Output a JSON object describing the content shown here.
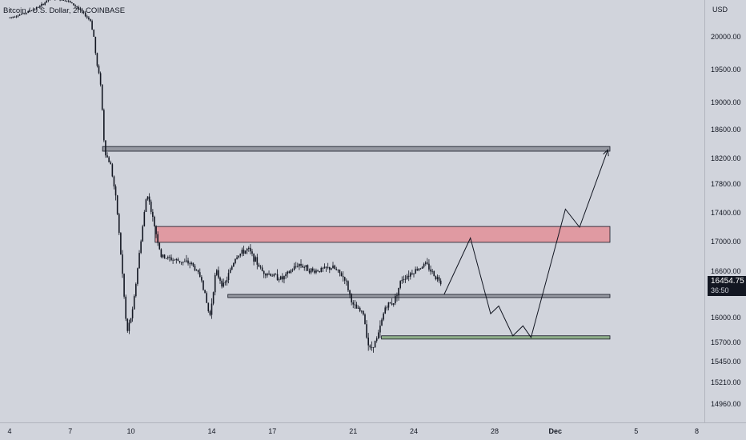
{
  "chart_data": {
    "type": "candlestick",
    "title": "Bitcoin / U.S. Dollar, 2h, COINBASE",
    "currency_label": "USD",
    "x_tick_labels": [
      "4",
      "7",
      "10",
      "14",
      "17",
      "21",
      "24",
      "28",
      "Dec",
      "5",
      "8"
    ],
    "y_tick_labels": [
      "20000.00",
      "19500.00",
      "19000.00",
      "18600.00",
      "18200.00",
      "17800.00",
      "17400.00",
      "17000.00",
      "16600.00",
      "16000.00",
      "15700.00",
      "15450.00",
      "15210.00",
      "14960.00"
    ],
    "last_price": "16454.75",
    "countdown": "36:50",
    "price_path_2h": [
      {
        "day": 4.0,
        "price": 20600
      },
      {
        "day": 4.8,
        "price": 20750
      },
      {
        "day": 5.5,
        "price": 20950
      },
      {
        "day": 6.0,
        "price": 21200
      },
      {
        "day": 6.8,
        "price": 21150
      },
      {
        "day": 7.4,
        "price": 20900
      },
      {
        "day": 8.0,
        "price": 20500
      },
      {
        "day": 8.3,
        "price": 19600
      },
      {
        "day": 8.5,
        "price": 19300
      },
      {
        "day": 8.7,
        "price": 18300
      },
      {
        "day": 9.0,
        "price": 18100
      },
      {
        "day": 9.3,
        "price": 17500
      },
      {
        "day": 9.6,
        "price": 16500
      },
      {
        "day": 9.8,
        "price": 15800
      },
      {
        "day": 10.1,
        "price": 16100
      },
      {
        "day": 10.4,
        "price": 16800
      },
      {
        "day": 10.8,
        "price": 17700
      },
      {
        "day": 11.1,
        "price": 17300
      },
      {
        "day": 11.5,
        "price": 16800
      },
      {
        "day": 12.2,
        "price": 16750
      },
      {
        "day": 13.0,
        "price": 16700
      },
      {
        "day": 13.5,
        "price": 16500
      },
      {
        "day": 13.9,
        "price": 16000
      },
      {
        "day": 14.2,
        "price": 16600
      },
      {
        "day": 14.6,
        "price": 16400
      },
      {
        "day": 15.2,
        "price": 16800
      },
      {
        "day": 15.8,
        "price": 16900
      },
      {
        "day": 16.5,
        "price": 16600
      },
      {
        "day": 17.5,
        "price": 16500
      },
      {
        "day": 18.3,
        "price": 16700
      },
      {
        "day": 19.0,
        "price": 16600
      },
      {
        "day": 20.0,
        "price": 16650
      },
      {
        "day": 20.6,
        "price": 16500
      },
      {
        "day": 21.0,
        "price": 16150
      },
      {
        "day": 21.5,
        "price": 16050
      },
      {
        "day": 21.8,
        "price": 15600
      },
      {
        "day": 22.2,
        "price": 15750
      },
      {
        "day": 22.6,
        "price": 16150
      },
      {
        "day": 23.0,
        "price": 16200
      },
      {
        "day": 23.4,
        "price": 16500
      },
      {
        "day": 24.0,
        "price": 16600
      },
      {
        "day": 24.6,
        "price": 16700
      },
      {
        "day": 25.0,
        "price": 16550
      },
      {
        "day": 25.4,
        "price": 16454.75
      }
    ],
    "zones": [
      {
        "name": "resistance-top",
        "from_price": 18300,
        "to_price": 18365,
        "fill": "#9598a1",
        "stroke": "#131722"
      },
      {
        "name": "supply-zone",
        "from_price": 16990,
        "to_price": 17210,
        "fill": "#e09aa2",
        "stroke": "#131722"
      },
      {
        "name": "support-mid",
        "from_price": 16260,
        "to_price": 16300,
        "fill": "#9598a1",
        "stroke": "#131722"
      },
      {
        "name": "demand-zone",
        "from_price": 15740,
        "to_price": 15780,
        "fill": "#8fae8a",
        "stroke": "#131722"
      }
    ],
    "projection_path": [
      {
        "day": 25.5,
        "price": 16300
      },
      {
        "day": 26.8,
        "price": 17050
      },
      {
        "day": 27.8,
        "price": 16050
      },
      {
        "day": 28.2,
        "price": 16150
      },
      {
        "day": 28.9,
        "price": 15780
      },
      {
        "day": 29.4,
        "price": 15900
      },
      {
        "day": 29.8,
        "price": 15760
      },
      {
        "day": 31.5,
        "price": 17450
      },
      {
        "day": 32.2,
        "price": 17200
      },
      {
        "day": 33.6,
        "price": 18320
      }
    ],
    "grid": false,
    "colors": {
      "background": "#d1d4dc",
      "candle": "#131722",
      "axis_text": "#131722",
      "line": "#131722"
    }
  }
}
